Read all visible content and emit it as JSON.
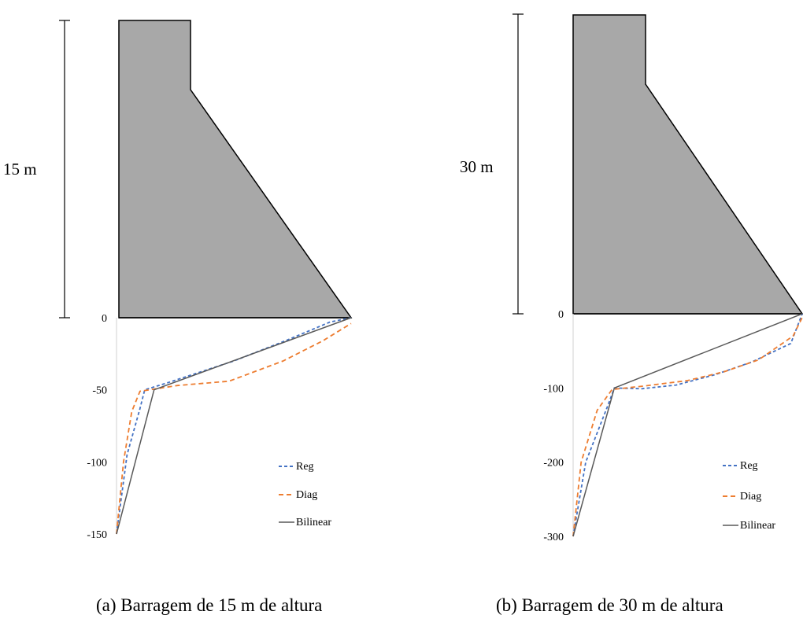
{
  "colors": {
    "dam_fill": "#a8a8a8",
    "dam_edge": "#000000",
    "reg": "#4472c4",
    "diag": "#ed7d31",
    "bilinear": "#595959",
    "axis": "#d9d9d9"
  },
  "chart_data": [
    {
      "type": "line",
      "panel": "a",
      "height_label": "15 m",
      "caption": "(a)  Barragem de 15 m de altura",
      "y_ticks": [
        0,
        -50,
        -100,
        -150
      ],
      "ylim": [
        -150,
        0
      ],
      "x": [
        0,
        1,
        2,
        3,
        4,
        5,
        6
      ],
      "series": [
        {
          "name": "Reg",
          "style": "dashed",
          "points": [
            [
              0,
              -150
            ],
            [
              0.45,
              -95
            ],
            [
              1,
              -63
            ],
            [
              1.2,
              -50
            ],
            [
              2.2,
              -45
            ],
            [
              3.5,
              -38
            ],
            [
              5,
              -30
            ],
            [
              7.2,
              -16
            ],
            [
              9.1,
              -3
            ],
            [
              10,
              0
            ]
          ]
        },
        {
          "name": "Diag",
          "style": "dashed",
          "points": [
            [
              0,
              -150
            ],
            [
              0.3,
              -100
            ],
            [
              0.65,
              -65
            ],
            [
              1,
              -51
            ],
            [
              2.6,
              -47
            ],
            [
              4.8,
              -44
            ],
            [
              7.1,
              -30
            ],
            [
              8.8,
              -16
            ],
            [
              10,
              -4
            ]
          ]
        },
        {
          "name": "Bilinear",
          "style": "solid",
          "points": [
            [
              0,
              -150
            ],
            [
              1.6,
              -50
            ],
            [
              10,
              0
            ]
          ]
        }
      ],
      "legend": [
        "Reg",
        "Diag",
        "Bilinear"
      ],
      "legend_position": "bottom-right"
    },
    {
      "type": "line",
      "panel": "b",
      "height_label": "30 m",
      "caption": "(b)  Barragem de 30 m de altura",
      "y_ticks": [
        0,
        -100,
        -200,
        -300
      ],
      "ylim": [
        -300,
        0
      ],
      "series": [
        {
          "name": "Reg",
          "style": "dashed",
          "points": [
            [
              0,
              -300
            ],
            [
              0.55,
              -200
            ],
            [
              1.5,
              -125
            ],
            [
              1.8,
              -100
            ],
            [
              3,
              -101
            ],
            [
              4.5,
              -96
            ],
            [
              6.2,
              -82
            ],
            [
              7.8,
              -65
            ],
            [
              9.5,
              -40
            ],
            [
              10,
              0
            ]
          ]
        },
        {
          "name": "Diag",
          "style": "dashed",
          "points": [
            [
              0,
              -300
            ],
            [
              0.35,
              -200
            ],
            [
              1.05,
              -130
            ],
            [
              1.7,
              -102
            ],
            [
              3.2,
              -97
            ],
            [
              5,
              -90
            ],
            [
              6.6,
              -78
            ],
            [
              8.1,
              -62
            ],
            [
              9.6,
              -30
            ],
            [
              10,
              -5
            ]
          ]
        },
        {
          "name": "Bilinear",
          "style": "solid",
          "points": [
            [
              0,
              -300
            ],
            [
              1.8,
              -100
            ],
            [
              10,
              0
            ]
          ]
        }
      ],
      "legend": [
        "Reg",
        "Diag",
        "Bilinear"
      ],
      "legend_position": "bottom-right"
    }
  ]
}
